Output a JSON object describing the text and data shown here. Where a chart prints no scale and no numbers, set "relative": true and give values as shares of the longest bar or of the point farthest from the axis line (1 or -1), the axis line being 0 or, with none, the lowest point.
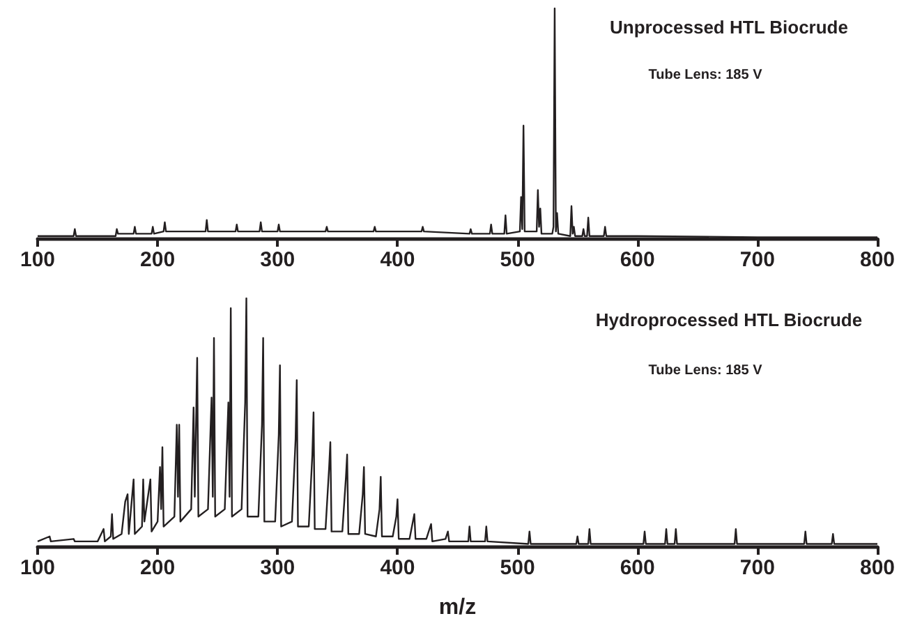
{
  "chart_data": [
    {
      "type": "line",
      "title": "Unprocessed HTL Biocrude",
      "subtitle": "Tube Lens: 185 V",
      "relative": true,
      "xlim": [
        100,
        800
      ],
      "xticks": [
        100,
        200,
        300,
        400,
        500,
        600,
        700,
        800
      ],
      "marker": "none",
      "color": "#231f20",
      "x": [
        100,
        130,
        131,
        132,
        165,
        166,
        167,
        180,
        181,
        182,
        195,
        196,
        197,
        205,
        206,
        207,
        240,
        241,
        242,
        265,
        266,
        267,
        285,
        286,
        287,
        300,
        301,
        302,
        340,
        341,
        342,
        380,
        381,
        382,
        420,
        421,
        422,
        460,
        461,
        462,
        477,
        478,
        479,
        489,
        490,
        491,
        502,
        503,
        504,
        505,
        506,
        516,
        517,
        518,
        519,
        520,
        529,
        530,
        531,
        532,
        533,
        534,
        544,
        545,
        546,
        547,
        548,
        554,
        555,
        556,
        558,
        559,
        560,
        572,
        573,
        574,
        600,
        700,
        800
      ],
      "values": [
        0.01,
        0.01,
        0.04,
        0.01,
        0.01,
        0.04,
        0.02,
        0.02,
        0.05,
        0.02,
        0.02,
        0.05,
        0.02,
        0.03,
        0.07,
        0.03,
        0.03,
        0.08,
        0.03,
        0.03,
        0.06,
        0.03,
        0.03,
        0.07,
        0.03,
        0.03,
        0.06,
        0.03,
        0.03,
        0.05,
        0.03,
        0.03,
        0.05,
        0.03,
        0.03,
        0.05,
        0.03,
        0.02,
        0.04,
        0.02,
        0.02,
        0.06,
        0.02,
        0.02,
        0.1,
        0.02,
        0.03,
        0.18,
        0.04,
        0.49,
        0.03,
        0.03,
        0.21,
        0.05,
        0.13,
        0.02,
        0.02,
        0.05,
        1,
        0.03,
        0.11,
        0.02,
        0.01,
        0.14,
        0.02,
        0.05,
        0.01,
        0.01,
        0.04,
        0.01,
        0.01,
        0.09,
        0.01,
        0.01,
        0.05,
        0.01,
        0.01,
        0.005,
        0.005
      ]
    },
    {
      "type": "line",
      "title": "Hydroprocessed HTL Biocrude",
      "subtitle": "Tube Lens: 185 V",
      "xlabel": "m/z",
      "relative": true,
      "xlim": [
        100,
        800
      ],
      "xticks": [
        100,
        200,
        300,
        400,
        500,
        600,
        700,
        800
      ],
      "marker": "none",
      "color": "#231f20",
      "x": [
        100,
        110,
        111,
        130,
        131,
        150,
        155,
        156,
        161,
        162,
        163,
        170,
        173,
        175,
        176,
        180,
        181,
        187,
        188,
        189,
        194,
        195,
        200,
        202,
        203,
        204,
        205,
        214,
        216,
        217,
        218,
        219,
        228,
        230,
        231,
        233,
        234,
        242,
        245,
        246,
        247,
        248,
        256,
        259,
        260,
        261,
        262,
        270,
        273,
        274,
        275,
        284,
        287,
        288,
        289,
        298,
        301,
        302,
        303,
        312,
        315,
        316,
        317,
        326,
        329,
        330,
        331,
        340,
        343,
        344,
        345,
        354,
        357,
        358,
        359,
        368,
        371,
        372,
        373,
        382,
        385,
        386,
        387,
        396,
        399,
        400,
        401,
        410,
        414,
        415,
        424,
        428,
        429,
        440,
        442,
        443,
        459,
        460,
        461,
        473,
        474,
        475,
        509,
        510,
        511,
        549,
        550,
        551,
        559,
        560,
        561,
        605,
        606,
        607,
        623,
        624,
        625,
        631,
        632,
        633,
        681,
        682,
        683,
        739,
        740,
        741,
        762,
        763,
        764,
        800
      ],
      "values": [
        0.02,
        0.04,
        0.02,
        0.03,
        0.02,
        0.02,
        0.07,
        0.02,
        0.04,
        0.13,
        0.03,
        0.05,
        0.18,
        0.21,
        0.05,
        0.27,
        0.05,
        0.08,
        0.27,
        0.1,
        0.27,
        0.06,
        0.1,
        0.32,
        0.15,
        0.4,
        0.08,
        0.12,
        0.49,
        0.2,
        0.49,
        0.1,
        0.15,
        0.56,
        0.2,
        0.76,
        0.12,
        0.15,
        0.6,
        0.2,
        0.84,
        0.12,
        0.15,
        0.58,
        0.2,
        0.96,
        0.12,
        0.15,
        0.58,
        1,
        0.12,
        0.12,
        0.49,
        0.84,
        0.1,
        0.1,
        0.45,
        0.73,
        0.08,
        0.1,
        0.43,
        0.67,
        0.08,
        0.08,
        0.37,
        0.54,
        0.07,
        0.07,
        0.32,
        0.42,
        0.06,
        0.06,
        0.28,
        0.37,
        0.05,
        0.05,
        0.21,
        0.32,
        0.05,
        0.04,
        0.15,
        0.28,
        0.04,
        0.04,
        0.12,
        0.19,
        0.03,
        0.03,
        0.13,
        0.03,
        0.03,
        0.09,
        0.02,
        0.03,
        0.06,
        0.02,
        0.02,
        0.08,
        0.02,
        0.02,
        0.08,
        0.02,
        0.01,
        0.06,
        0.01,
        0.01,
        0.04,
        0.01,
        0.01,
        0.07,
        0.01,
        0.01,
        0.06,
        0.01,
        0.01,
        0.07,
        0.01,
        0.01,
        0.07,
        0.01,
        0.01,
        0.07,
        0.01,
        0.01,
        0.06,
        0.01,
        0.01,
        0.05,
        0.01,
        0.01
      ]
    }
  ]
}
